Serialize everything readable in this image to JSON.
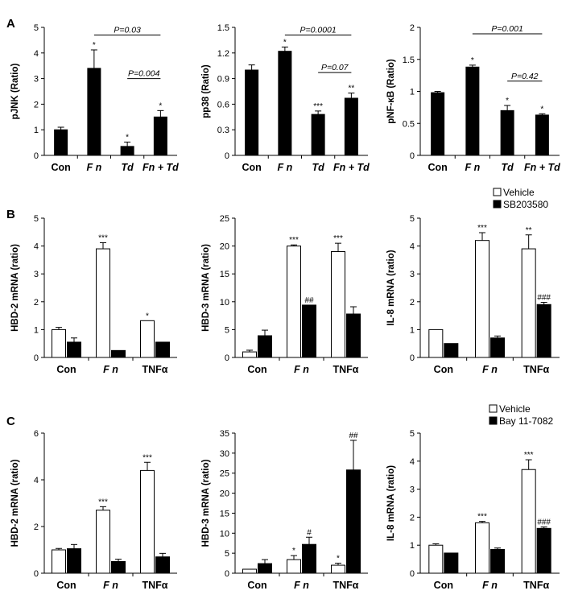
{
  "panel_letters": [
    "A",
    "B",
    "C"
  ],
  "chart_data": [
    {
      "type": "bar",
      "panel": "A",
      "ylabel": "pJNK (Ratio)",
      "categories": [
        "Con",
        "F n",
        "Td",
        "Fn + Td"
      ],
      "ylim": [
        0,
        5
      ],
      "yticks": [
        0,
        1,
        2,
        3,
        4,
        5
      ],
      "series": [
        {
          "values": [
            1.0,
            3.4,
            0.35,
            1.5
          ],
          "errors": [
            0.1,
            0.72,
            0.17,
            0.25
          ],
          "fill": "#000000"
        }
      ],
      "stars": [
        [
          "",
          "*",
          "*",
          "*"
        ]
      ],
      "brackets": [
        {
          "from": 1,
          "to": 3,
          "label": "P=0.03",
          "y": 4.7
        },
        {
          "from": 2,
          "to": 3,
          "label": "P=0.004",
          "y": 3.0
        }
      ],
      "legend": null
    },
    {
      "type": "bar",
      "panel": "A",
      "ylabel": "pp38 (Ratio)",
      "categories": [
        "Con",
        "F n",
        "Td",
        "Fn + Td"
      ],
      "ylim": [
        0,
        1.5
      ],
      "yticks": [
        0,
        0.3,
        0.6,
        0.9,
        1.2,
        1.5
      ],
      "series": [
        {
          "values": [
            1.0,
            1.22,
            0.48,
            0.67
          ],
          "errors": [
            0.06,
            0.05,
            0.04,
            0.06
          ],
          "fill": "#000000"
        }
      ],
      "stars": [
        [
          "",
          "*",
          "***",
          "**"
        ]
      ],
      "brackets": [
        {
          "from": 1,
          "to": 3,
          "label": "P=0.0001",
          "y": 1.41
        },
        {
          "from": 2,
          "to": 3,
          "label": "P=0.07",
          "y": 0.97
        }
      ],
      "legend": null
    },
    {
      "type": "bar",
      "panel": "A",
      "ylabel": "pNF-κB (Ratio)",
      "categories": [
        "Con",
        "F n",
        "Td",
        "Fn + Td"
      ],
      "ylim": [
        0,
        2
      ],
      "yticks": [
        0,
        0.5,
        1,
        1.5,
        2
      ],
      "series": [
        {
          "values": [
            0.98,
            1.38,
            0.7,
            0.63
          ],
          "errors": [
            0.02,
            0.03,
            0.08,
            0.02
          ],
          "fill": "#000000"
        }
      ],
      "stars": [
        [
          "",
          "*",
          "*",
          "*"
        ]
      ],
      "brackets": [
        {
          "from": 1,
          "to": 3,
          "label": "P=0.001",
          "y": 1.9
        },
        {
          "from": 2,
          "to": 3,
          "label": "P=0.42",
          "y": 1.16
        }
      ],
      "legend": null
    },
    {
      "type": "bar",
      "panel": "B",
      "ylabel": "HBD-2 mRNA (ratio)",
      "categories": [
        "Con",
        "F n",
        "TNFα"
      ],
      "ylim": [
        0,
        5
      ],
      "yticks": [
        0,
        1,
        2,
        3,
        4,
        5
      ],
      "series": [
        {
          "name": "Vehicle",
          "values": [
            1.0,
            3.9,
            1.32
          ],
          "errors": [
            0.08,
            0.22,
            0.0
          ],
          "fill": "#ffffff"
        },
        {
          "name": "SB203580",
          "values": [
            0.55,
            0.25,
            0.55
          ],
          "errors": [
            0.15,
            0.0,
            0.0
          ],
          "fill": "#000000"
        }
      ],
      "stars": [
        [
          "",
          "***",
          "*"
        ],
        [
          "",
          "",
          ""
        ]
      ],
      "brackets": [],
      "legend": null
    },
    {
      "type": "bar",
      "panel": "B",
      "ylabel": "HBD-3 mRNA (ratio)",
      "categories": [
        "Con",
        "F n",
        "TNFα"
      ],
      "ylim": [
        0,
        25
      ],
      "yticks": [
        0,
        5,
        10,
        15,
        20,
        25
      ],
      "series": [
        {
          "name": "Vehicle",
          "values": [
            1.0,
            20.0,
            19.0
          ],
          "errors": [
            0.3,
            0.2,
            1.5
          ],
          "fill": "#ffffff"
        },
        {
          "name": "SB203580",
          "values": [
            3.9,
            9.4,
            7.8
          ],
          "errors": [
            1.0,
            0.0,
            1.3
          ],
          "fill": "#000000"
        }
      ],
      "stars": [
        [
          "",
          "***",
          "***"
        ],
        [
          "",
          "##",
          ""
        ]
      ],
      "brackets": [],
      "legend": null
    },
    {
      "type": "bar",
      "panel": "B",
      "ylabel": "IL-8 mRNA (ratio)",
      "categories": [
        "Con",
        "F n",
        "TNFα"
      ],
      "ylim": [
        0,
        5
      ],
      "yticks": [
        0,
        1,
        2,
        3,
        4,
        5
      ],
      "series": [
        {
          "name": "Vehicle",
          "values": [
            1.0,
            4.2,
            3.9
          ],
          "errors": [
            0.0,
            0.28,
            0.5
          ],
          "fill": "#ffffff"
        },
        {
          "name": "SB203580",
          "values": [
            0.5,
            0.7,
            1.9
          ],
          "errors": [
            0.0,
            0.07,
            0.08
          ],
          "fill": "#000000"
        }
      ],
      "stars": [
        [
          "",
          "***",
          "**"
        ],
        [
          "",
          "",
          "###"
        ]
      ],
      "brackets": [],
      "legend": [
        "Vehicle",
        "SB203580"
      ]
    },
    {
      "type": "bar",
      "panel": "C",
      "ylabel": "HBD-2 mRNA (ratio)",
      "categories": [
        "Con",
        "F n",
        "TNFα"
      ],
      "ylim": [
        0,
        6
      ],
      "yticks": [
        0,
        2,
        4,
        6
      ],
      "series": [
        {
          "name": "Vehicle",
          "values": [
            1.0,
            2.7,
            4.4
          ],
          "errors": [
            0.06,
            0.15,
            0.35
          ],
          "fill": "#ffffff"
        },
        {
          "name": "Bay 11-7082",
          "values": [
            1.05,
            0.5,
            0.7
          ],
          "errors": [
            0.18,
            0.1,
            0.15
          ],
          "fill": "#000000"
        }
      ],
      "stars": [
        [
          "",
          "***",
          "***"
        ],
        [
          "",
          "",
          ""
        ]
      ],
      "brackets": [],
      "legend": null
    },
    {
      "type": "bar",
      "panel": "C",
      "ylabel": "HBD-3 mRNA (ratio)",
      "categories": [
        "Con",
        "F n",
        "TNFα"
      ],
      "ylim": [
        0,
        35
      ],
      "yticks": [
        0,
        5,
        10,
        15,
        20,
        25,
        30,
        35
      ],
      "series": [
        {
          "name": "Vehicle",
          "values": [
            1.0,
            3.4,
            2.0
          ],
          "errors": [
            0.0,
            1.0,
            0.5
          ],
          "fill": "#ffffff"
        },
        {
          "name": "Bay 11-7082",
          "values": [
            2.4,
            7.2,
            25.8
          ],
          "errors": [
            1.0,
            1.8,
            7.4
          ],
          "fill": "#000000"
        }
      ],
      "stars": [
        [
          "",
          "*",
          "*"
        ],
        [
          "",
          "#",
          "##"
        ]
      ],
      "brackets": [],
      "legend": null
    },
    {
      "type": "bar",
      "panel": "C",
      "ylabel": "IL-8 mRNA (ratio)",
      "categories": [
        "Con",
        "F n",
        "TNFα"
      ],
      "ylim": [
        0,
        5
      ],
      "yticks": [
        0,
        1,
        2,
        3,
        4,
        5
      ],
      "series": [
        {
          "name": "Vehicle",
          "values": [
            1.0,
            1.8,
            3.7
          ],
          "errors": [
            0.05,
            0.05,
            0.35
          ],
          "fill": "#ffffff"
        },
        {
          "name": "Bay 11-7082",
          "values": [
            0.72,
            0.85,
            1.6
          ],
          "errors": [
            0.0,
            0.05,
            0.05
          ],
          "fill": "#000000"
        }
      ],
      "stars": [
        [
          "",
          "***",
          "***"
        ],
        [
          "",
          "",
          "###"
        ]
      ],
      "brackets": [],
      "legend": [
        "Vehicle",
        "Bay 11-7082"
      ]
    }
  ]
}
